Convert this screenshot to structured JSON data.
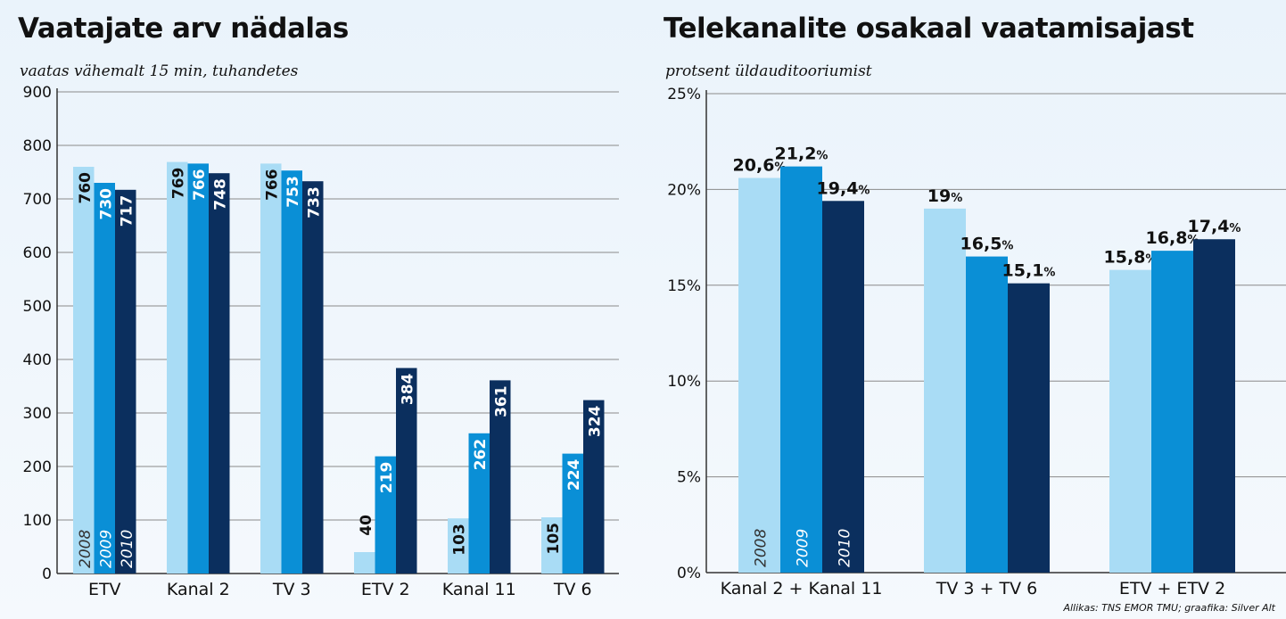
{
  "colors": {
    "y2008": "#a9dcf5",
    "y2009": "#0a8fd6",
    "y2010": "#0b2f5e",
    "grid": "#8a8a8a",
    "text": "#111111"
  },
  "source": "Allikas: TNS EMOR TMU; graafika: Silver Alt",
  "chart_data": [
    {
      "type": "bar",
      "title": "Vaatajate arv nädalas",
      "subtitle": "vaatas vähemalt 15 min, tuhandetes",
      "categories": [
        "ETV",
        "Kanal 2",
        "TV 3",
        "ETV 2",
        "Kanal 11",
        "TV 6"
      ],
      "series": [
        {
          "name": "2008",
          "values": [
            760,
            769,
            766,
            40,
            103,
            105
          ],
          "labels": [
            "760",
            "769",
            "766",
            "40",
            "103",
            "105"
          ]
        },
        {
          "name": "2009",
          "values": [
            730,
            766,
            753,
            219,
            262,
            224
          ],
          "labels": [
            "730",
            "766",
            "753",
            "219",
            "262",
            "224"
          ]
        },
        {
          "name": "2010",
          "values": [
            717,
            748,
            733,
            384,
            361,
            324
          ],
          "labels": [
            "717",
            "748",
            "733",
            "384",
            "361",
            "324"
          ]
        }
      ],
      "ylim": [
        0,
        900
      ],
      "yticks": [
        0,
        100,
        200,
        300,
        400,
        500,
        600,
        700,
        800,
        900
      ],
      "ytick_labels": [
        "0",
        "100",
        "200",
        "300",
        "400",
        "500",
        "600",
        "700",
        "800",
        "900"
      ],
      "grid": true,
      "label_style": "rotated-inside-top",
      "year_labels": "rotated-inside-bottom"
    },
    {
      "type": "bar",
      "title": "Telekanalite osakaal vaatamisajast",
      "subtitle": "protsent üldauditooriumist",
      "categories": [
        "Kanal 2 + Kanal 11",
        "TV 3 + TV 6",
        "ETV + ETV 2"
      ],
      "series": [
        {
          "name": "2008",
          "values": [
            20.6,
            19.0,
            15.8
          ],
          "labels": [
            "20,6",
            "19",
            "15,8"
          ]
        },
        {
          "name": "2009",
          "values": [
            21.2,
            16.5,
            16.8
          ],
          "labels": [
            "21,2",
            "16,5",
            "16,8"
          ]
        },
        {
          "name": "2010",
          "values": [
            19.4,
            15.1,
            17.4
          ],
          "labels": [
            "19,4",
            "15,1",
            "17,4"
          ]
        }
      ],
      "unit_suffix": "%",
      "ylim": [
        0,
        25
      ],
      "yticks": [
        0,
        5,
        10,
        15,
        20,
        25
      ],
      "ytick_labels": [
        "0%",
        "5%",
        "10%",
        "15%",
        "20%",
        "25%"
      ],
      "grid": true,
      "label_style": "above",
      "year_labels": "rotated-inside-bottom"
    }
  ]
}
